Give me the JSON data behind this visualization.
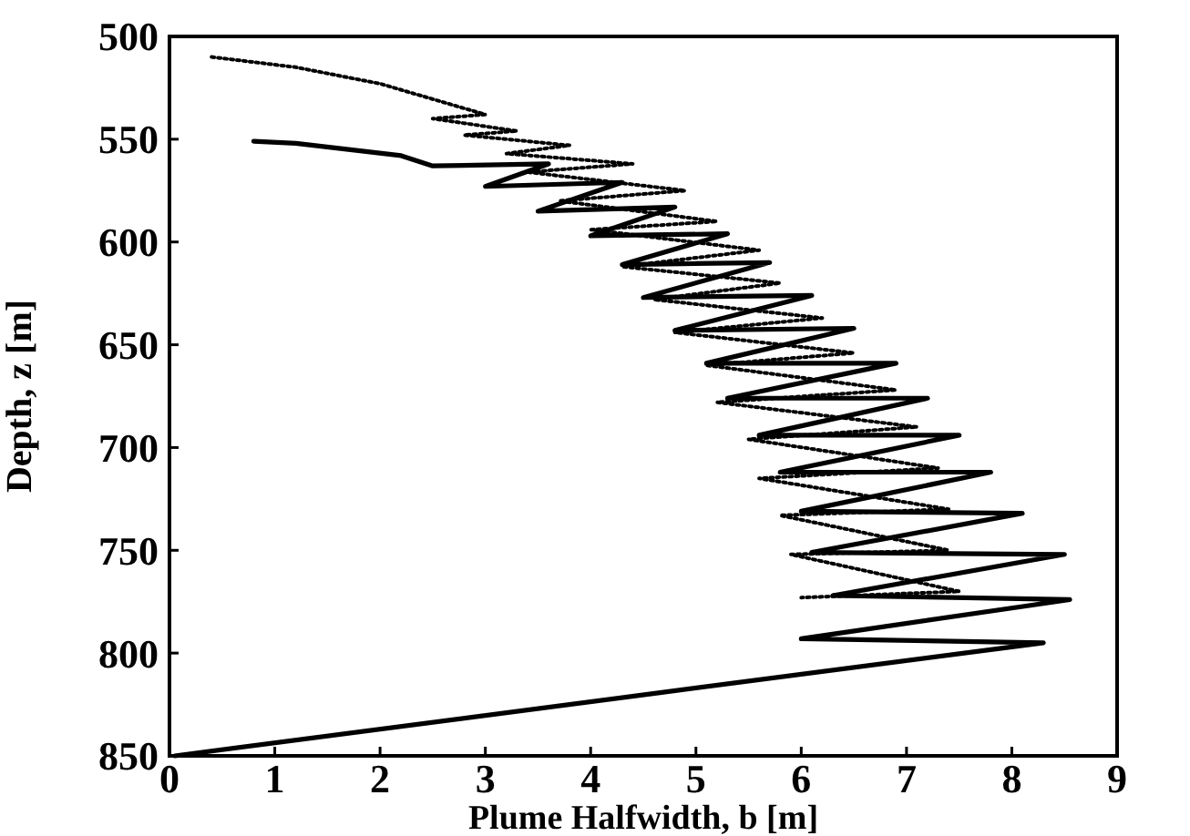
{
  "chart_data": {
    "type": "line",
    "xlabel": "Plume Halfwidth, b [m]",
    "ylabel": "Depth, z [m]",
    "xlim": [
      0,
      9
    ],
    "xticks": [
      0,
      1,
      2,
      3,
      4,
      5,
      6,
      7,
      8,
      9
    ],
    "ylim": [
      850,
      500
    ],
    "yticks": [
      500,
      550,
      600,
      650,
      700,
      750,
      800,
      850
    ],
    "grid": false,
    "series": [
      {
        "color": "#000000",
        "line_style": "solid",
        "x": [
          0.05,
          8.3,
          6.0,
          8.55,
          6.3,
          8.5,
          6.1,
          8.1,
          6.0,
          7.8,
          5.8,
          7.5,
          5.6,
          7.2,
          5.3,
          6.9,
          5.1,
          6.5,
          4.8,
          6.1,
          4.5,
          5.7,
          4.3,
          5.3,
          4.0,
          4.8,
          3.5,
          4.3,
          3.0,
          3.6,
          2.5,
          2.2,
          1.2,
          0.8
        ],
        "values": [
          850,
          795,
          793,
          774,
          772,
          752,
          751,
          732,
          731,
          712,
          712,
          694,
          694,
          676,
          676,
          659,
          659,
          642,
          643,
          626,
          627,
          610,
          611,
          596,
          597,
          583,
          585,
          571,
          573,
          562,
          563,
          558,
          552,
          551
        ]
      },
      {
        "color": "#000000",
        "line_style": "dotted",
        "x": [
          0.4,
          1.2,
          2.0,
          2.6,
          3.0,
          2.5,
          3.3,
          2.8,
          3.8,
          3.2,
          4.4,
          3.4,
          4.9,
          3.7,
          5.2,
          4.0,
          5.6,
          4.3,
          5.8,
          4.6,
          6.2,
          4.8,
          6.5,
          5.1,
          6.9,
          5.2,
          7.1,
          5.5,
          7.3,
          5.6,
          7.4,
          5.8,
          7.4,
          5.9,
          7.5,
          6.0
        ],
        "values": [
          510,
          515,
          523,
          532,
          538,
          540,
          546,
          548,
          553,
          557,
          562,
          566,
          575,
          580,
          590,
          594,
          604,
          612,
          620,
          628,
          637,
          644,
          654,
          660,
          672,
          678,
          690,
          696,
          710,
          715,
          730,
          733,
          750,
          752,
          770,
          773
        ]
      }
    ]
  }
}
